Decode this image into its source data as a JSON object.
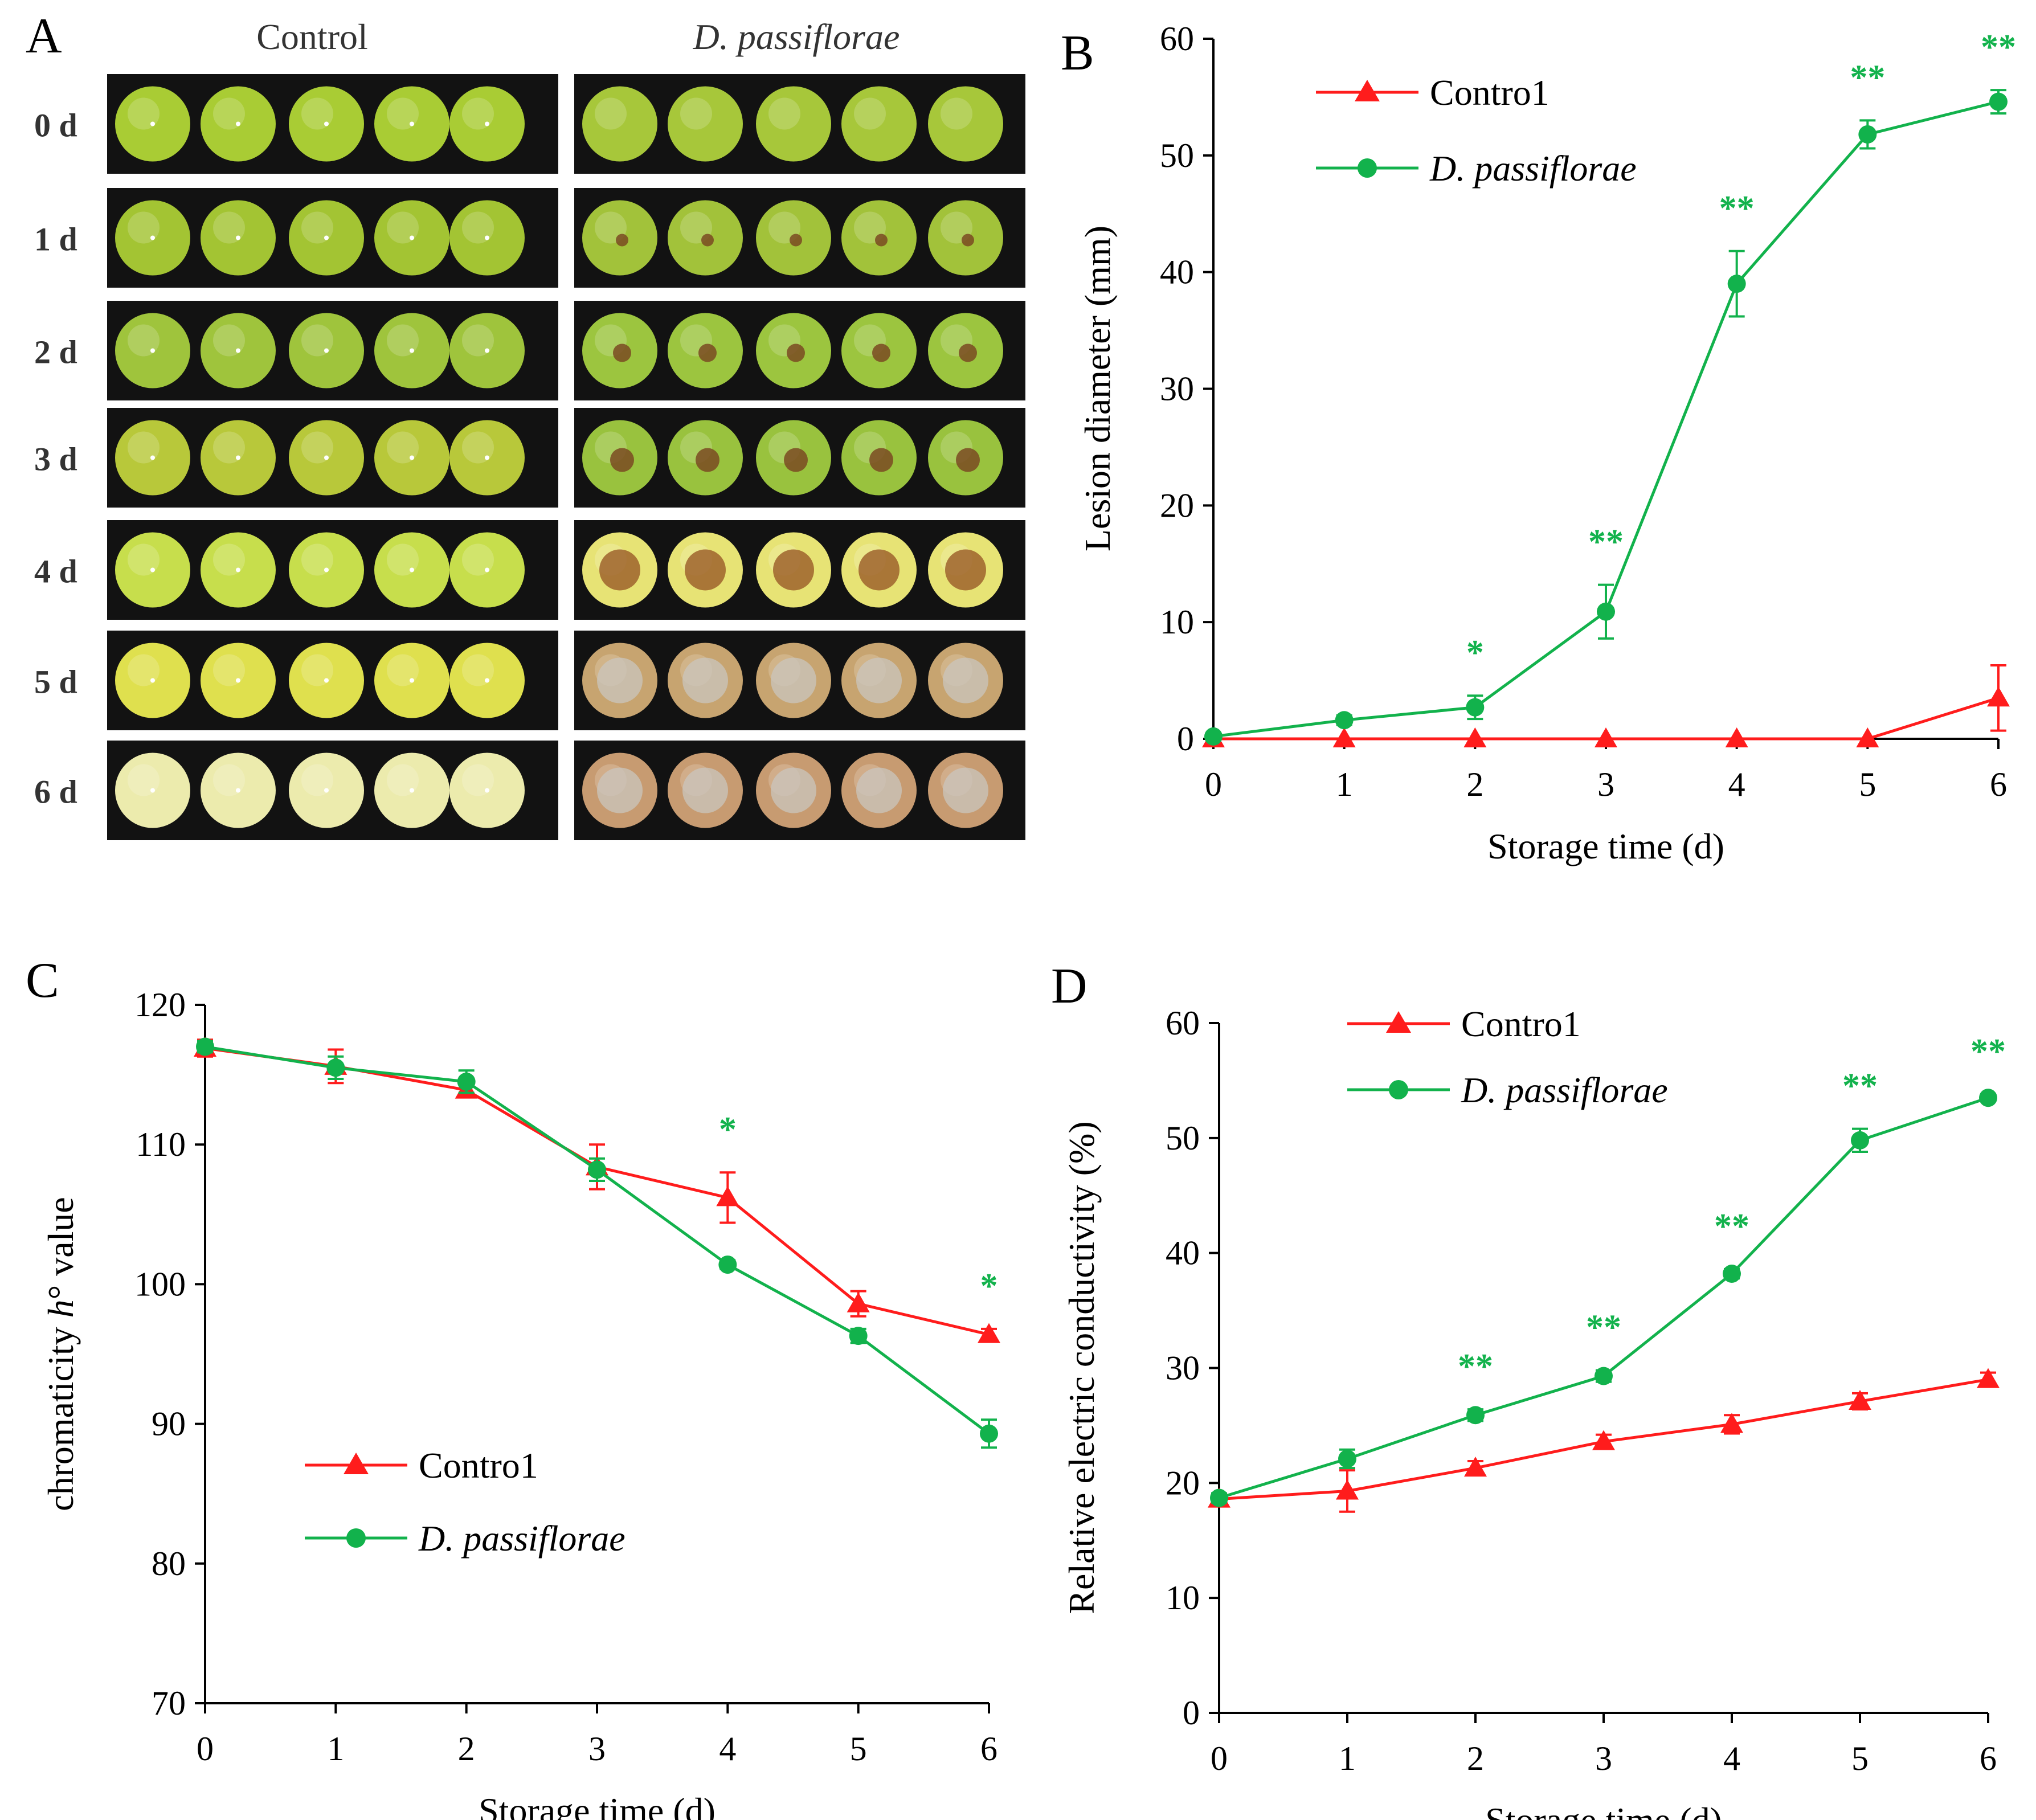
{
  "colors": {
    "control": "#ff1c1c",
    "pathogen": "#12b24c",
    "axis": "#000000",
    "photo_bg": "#121212",
    "healthy_fruit": "#b9d13a",
    "yellow_fruit": "#d6d63a",
    "lesion": "#7a4a22",
    "decayed_fruit": "#b58a55",
    "mold": "#c9c6bd"
  },
  "panel_a": {
    "letter": "A",
    "control_label": "Control",
    "treated_label": "D. passiflorae",
    "day_labels": [
      "0 d",
      "1 d",
      "2 d",
      "3 d",
      "4 d",
      "5 d",
      "6 d"
    ]
  },
  "chart_data": [
    {
      "panel": "B",
      "type": "line",
      "xlabel": "Storage time (d)",
      "ylabel": "Lesion diameter (mm)",
      "x": [
        0,
        1,
        2,
        3,
        4,
        5,
        6
      ],
      "xlim": [
        0,
        6
      ],
      "ylim": [
        0,
        60
      ],
      "yticks": [
        0,
        10,
        20,
        30,
        40,
        50,
        60
      ],
      "legend_position": "top-left",
      "series": [
        {
          "name": "Contro1",
          "marker": "triangle",
          "values": [
            0,
            0,
            0,
            0,
            0,
            0,
            3.5
          ],
          "errors": [
            0,
            0,
            0,
            0,
            0,
            0,
            2.8
          ]
        },
        {
          "name": "D. passiflorae",
          "marker": "circle",
          "values": [
            0.2,
            1.6,
            2.7,
            10.9,
            39,
            51.8,
            54.6
          ],
          "errors": [
            0,
            0.4,
            1.0,
            2.3,
            2.8,
            1.2,
            1.0
          ]
        }
      ],
      "significance": [
        "",
        "",
        "*",
        "**",
        "**",
        "**",
        "**"
      ]
    },
    {
      "panel": "C",
      "type": "line",
      "xlabel": "Storage time (d)",
      "ylabel_pre": "chromaticity ",
      "ylabel_italic": "h",
      "ylabel_post": "° value",
      "x": [
        0,
        1,
        2,
        3,
        4,
        5,
        6
      ],
      "xlim": [
        0,
        6
      ],
      "ylim": [
        70,
        120
      ],
      "yticks": [
        70,
        80,
        90,
        100,
        110,
        120
      ],
      "legend_position": "bottom-left",
      "series": [
        {
          "name": "Contro1",
          "marker": "triangle",
          "values": [
            116.9,
            115.6,
            113.9,
            108.4,
            106.2,
            98.6,
            96.4
          ],
          "errors": [
            0.6,
            1.2,
            0.5,
            1.6,
            1.8,
            0.9,
            0.4
          ]
        },
        {
          "name": "D. passiflorae",
          "marker": "circle",
          "values": [
            117.0,
            115.5,
            114.5,
            108.2,
            101.4,
            96.3,
            89.3
          ],
          "errors": [
            0.4,
            0.8,
            0.8,
            0.8,
            0.3,
            0.5,
            1.0
          ]
        }
      ],
      "significance": [
        "",
        "",
        "",
        "",
        "*",
        "",
        "*"
      ]
    },
    {
      "panel": "D",
      "type": "line",
      "xlabel": "Storage time (d)",
      "ylabel": "Relative electric conductivity (%)",
      "x": [
        0,
        1,
        2,
        3,
        4,
        5,
        6
      ],
      "xlim": [
        0,
        6
      ],
      "ylim": [
        0,
        60
      ],
      "yticks": [
        0,
        10,
        20,
        30,
        40,
        50,
        60
      ],
      "legend_position": "top-left",
      "series": [
        {
          "name": "Contro1",
          "marker": "triangle",
          "values": [
            18.6,
            19.3,
            21.3,
            23.6,
            25.1,
            27.1,
            29.0
          ],
          "errors": [
            0.4,
            1.8,
            0.6,
            0.6,
            0.8,
            0.7,
            0.6
          ]
        },
        {
          "name": "D. passiflorae",
          "marker": "circle",
          "values": [
            18.7,
            22.1,
            25.9,
            29.3,
            38.2,
            49.8,
            53.5
          ],
          "errors": [
            0.4,
            0.8,
            0.5,
            0.5,
            0.4,
            1.0,
            0.3
          ]
        }
      ],
      "significance": [
        "",
        "",
        "**",
        "**",
        "**",
        "**",
        "**"
      ]
    }
  ]
}
